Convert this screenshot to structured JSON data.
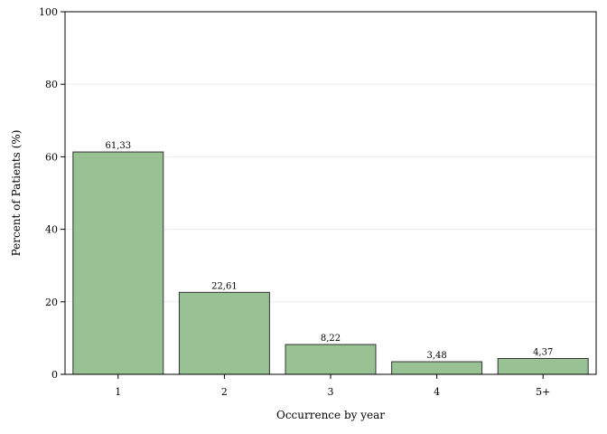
{
  "chart_data": {
    "type": "bar",
    "categories": [
      "1",
      "2",
      "3",
      "4",
      "5+"
    ],
    "values": [
      61.33,
      22.61,
      8.22,
      3.48,
      4.37
    ],
    "value_labels": [
      "61,33",
      "22,61",
      "8,22",
      "3,48",
      "4,37"
    ],
    "xlabel": "Occurrence by year",
    "ylabel": "Percent of Patients (%)",
    "ylim": [
      0,
      100
    ],
    "yticks": [
      0,
      20,
      40,
      60,
      80,
      100
    ],
    "grid": true,
    "bar_color": "#98c294",
    "bar_edge_color": "#333333",
    "grid_color": "#ececec"
  }
}
